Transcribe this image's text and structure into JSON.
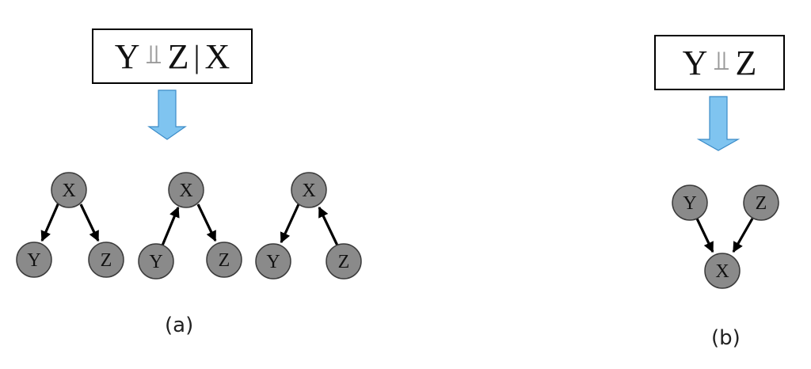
{
  "panel_a": {
    "formula": {
      "left": "Y",
      "symbol": "⫫",
      "right": "Z",
      "separator": "|",
      "given": "X"
    },
    "caption": "(a)",
    "graphs": [
      {
        "nodes": {
          "top": "X",
          "left": "Y",
          "right": "Z"
        }
      },
      {
        "nodes": {
          "top": "X",
          "left": "Y",
          "right": "Z"
        }
      },
      {
        "nodes": {
          "top": "X",
          "left": "Y",
          "right": "Z"
        }
      }
    ]
  },
  "panel_b": {
    "formula": {
      "left": "Y",
      "symbol": "⫫",
      "right": "Z"
    },
    "caption": "(b)",
    "graph": {
      "nodes": {
        "left": "Y",
        "right": "Z",
        "bottom": "X"
      }
    }
  },
  "colors": {
    "node_fill": "#8a8a8a",
    "node_stroke": "#3a3a3a",
    "arrow": "#000000",
    "big_arrow_fill": "#7fc4f0",
    "big_arrow_stroke": "#3c8cc8",
    "indep_symbol": "#9a9a9a"
  }
}
